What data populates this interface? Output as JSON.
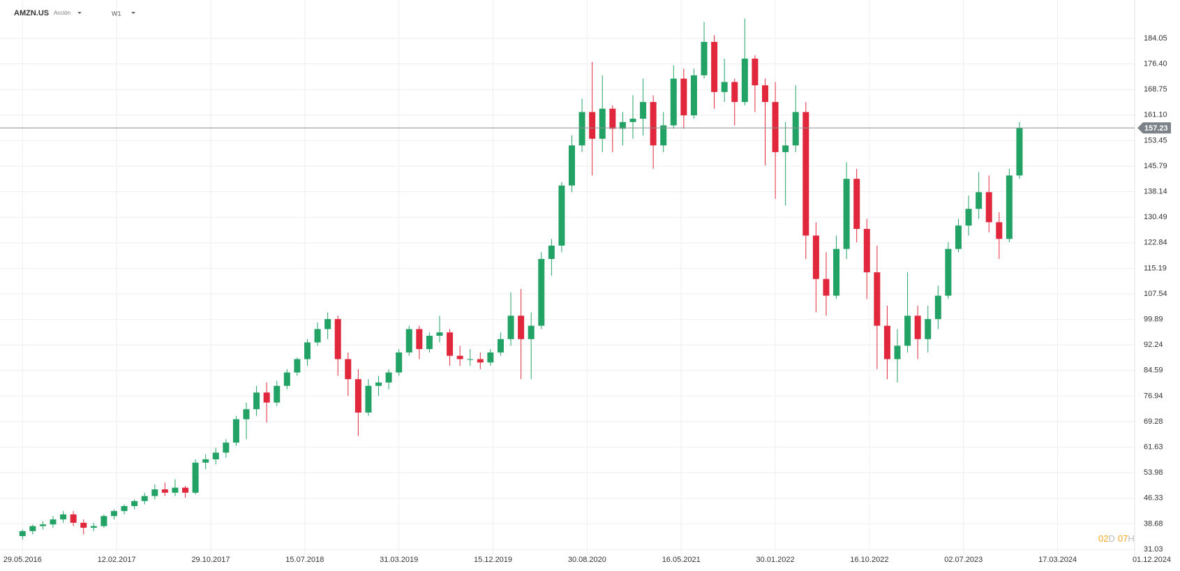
{
  "header": {
    "symbol": "AMZN.US",
    "kind": "Acción",
    "timeframe": "W1"
  },
  "countdown": [
    "02",
    "D",
    "07",
    "H"
  ],
  "chart_data": {
    "type": "candlestick",
    "up_color": "#22a365",
    "down_color": "#e0273b",
    "grid": true,
    "last_price": 157.23,
    "xlim": [
      "28.03.2016",
      "15.10.2024"
    ],
    "xticks": [
      "29.05.2016",
      "12.02.2017",
      "29.10.2017",
      "15.07.2018",
      "31.03.2019",
      "15.12.2019",
      "30.08.2020",
      "16.05.2021",
      "30.01.2022",
      "16.10.2022",
      "02.07.2023",
      "17.03.2024",
      "01.12.2024"
    ],
    "ylim": [
      29.36,
      195.55
    ],
    "yticks": [
      31.03,
      38.68,
      46.33,
      53.98,
      61.63,
      69.28,
      76.94,
      84.59,
      92.24,
      99.89,
      107.54,
      115.19,
      122.84,
      130.49,
      138.14,
      145.79,
      153.45,
      {
        "value": 161.1,
        "label": "161.10"
      },
      168.75,
      {
        "value": 176.4,
        "label": "176.40"
      },
      184.05
    ],
    "x": [
      "29.05.2016",
      "26.06.2016",
      "24.07.2016",
      "21.08.2016",
      "18.09.2016",
      "16.10.2016",
      "13.11.2016",
      "11.12.2016",
      "08.01.2017",
      "05.02.2017",
      "05.03.2017",
      "02.04.2017",
      "30.04.2017",
      "28.05.2017",
      "25.06.2017",
      "23.07.2017",
      "20.08.2017",
      "17.09.2017",
      "15.10.2017",
      "12.11.2017",
      "10.12.2017",
      "07.01.2018",
      "04.02.2018",
      "04.03.2018",
      "01.04.2018",
      "29.04.2018",
      "27.05.2018",
      "24.06.2018",
      "22.07.2018",
      "19.08.2018",
      "16.09.2018",
      "14.10.2018",
      "11.11.2018",
      "09.12.2018",
      "06.01.2019",
      "03.02.2019",
      "03.03.2019",
      "31.03.2019",
      "28.04.2019",
      "26.05.2019",
      "23.06.2019",
      "21.07.2019",
      "18.08.2019",
      "15.09.2019",
      "13.10.2019",
      "10.11.2019",
      "08.12.2019",
      "05.01.2020",
      "02.02.2020",
      "01.03.2020",
      "29.03.2020",
      "26.04.2020",
      "24.05.2020",
      "21.06.2020",
      "19.07.2020",
      "16.08.2020",
      "13.09.2020",
      "11.10.2020",
      "08.11.2020",
      "06.12.2020",
      "03.01.2021",
      "31.01.2021",
      "28.02.2021",
      "28.03.2021",
      "25.04.2021",
      "23.05.2021",
      "20.06.2021",
      "18.07.2021",
      "15.08.2021",
      "12.09.2021",
      "10.10.2021",
      "07.11.2021",
      "05.12.2021",
      "02.01.2022",
      "30.01.2022",
      "27.02.2022",
      "27.03.2022",
      "24.04.2022",
      "22.05.2022",
      "19.06.2022",
      "17.07.2022",
      "14.08.2022",
      "11.09.2022",
      "09.10.2022",
      "06.11.2022",
      "04.12.2022",
      "01.01.2023",
      "29.01.2023",
      "26.02.2023",
      "26.03.2023",
      "23.04.2023",
      "21.05.2023",
      "18.06.2023",
      "16.07.2023",
      "13.08.2023",
      "10.09.2023",
      "08.10.2023",
      "05.11.2023",
      "03.12.2023"
    ],
    "open": [
      35,
      36.5,
      38,
      38.5,
      40,
      41.5,
      39,
      37.5,
      38,
      41,
      42.5,
      44,
      45.5,
      47,
      49,
      48,
      49.5,
      48,
      57,
      58,
      60,
      63,
      70,
      73,
      78,
      75,
      80,
      84,
      88,
      93,
      97,
      100,
      88,
      82,
      72,
      80,
      81,
      84,
      90,
      97,
      91,
      95,
      96,
      89,
      88,
      88,
      87,
      90,
      94,
      101,
      94,
      98,
      118,
      122,
      140,
      152,
      162,
      154,
      163,
      157,
      159,
      160,
      165,
      152,
      158,
      172,
      161,
      173,
      183,
      168,
      171,
      165,
      178,
      170,
      165,
      150,
      152,
      162,
      125,
      112,
      107,
      121,
      142,
      127,
      114,
      98,
      88,
      92,
      101,
      94,
      100,
      107,
      121,
      128,
      133,
      138,
      129,
      124,
      143
    ],
    "high": [
      37,
      38.5,
      39.5,
      41,
      42.5,
      42.5,
      40,
      39,
      41.5,
      43,
      44.5,
      46,
      48,
      50.5,
      51,
      52,
      50,
      58,
      59.5,
      61.5,
      64,
      71,
      75,
      80,
      81,
      81.5,
      85,
      88.5,
      94,
      99,
      102,
      101,
      90,
      85,
      82,
      83,
      85,
      91,
      98,
      98,
      96,
      101,
      97,
      92,
      91,
      90,
      91,
      96,
      108,
      109,
      102,
      120,
      124,
      141,
      155,
      166,
      177,
      173,
      164,
      162,
      167,
      172,
      167,
      162,
      176,
      175,
      175,
      189,
      185,
      178,
      172,
      190,
      179,
      172,
      171,
      159,
      170,
      165,
      129,
      120,
      125,
      147,
      145,
      130,
      122,
      104,
      97,
      114,
      104,
      104,
      110,
      123,
      130,
      137,
      144,
      143,
      132,
      145,
      159
    ],
    "low": [
      34,
      35.5,
      37,
      37.5,
      39,
      38,
      35.5,
      36.5,
      37.5,
      40,
      41.5,
      43,
      44.5,
      46,
      47,
      47,
      46.5,
      47.5,
      55,
      56.5,
      58.5,
      62,
      64,
      71,
      69,
      74,
      79,
      83,
      86,
      92,
      94,
      83,
      77,
      65,
      71,
      77,
      79,
      83,
      89,
      88,
      90,
      93,
      86,
      86,
      86,
      85,
      86,
      89,
      92,
      82,
      82,
      97,
      113,
      120,
      138,
      150,
      143,
      150,
      150,
      152,
      154,
      155,
      145,
      150,
      157,
      157,
      160,
      172,
      163,
      165,
      158,
      164,
      162,
      146,
      136,
      134,
      150,
      118,
      102,
      101,
      106,
      118,
      123,
      106,
      85,
      82,
      81,
      90,
      88,
      90,
      97,
      106,
      120,
      125,
      130,
      126,
      118,
      123,
      142
    ],
    "close": [
      36.5,
      38,
      38.5,
      40,
      41.5,
      39,
      37.5,
      38,
      41,
      42.5,
      44,
      45.5,
      47,
      49,
      48,
      49.5,
      48,
      57,
      58,
      60,
      63,
      70,
      73,
      78,
      75,
      80,
      84,
      88,
      93,
      97,
      100,
      88,
      82,
      72,
      80,
      81,
      84,
      90,
      97,
      91,
      95,
      96,
      89,
      88,
      88,
      87,
      90,
      94,
      101,
      94,
      98,
      118,
      122,
      140,
      152,
      162,
      154,
      163,
      157,
      159,
      160,
      165,
      152,
      158,
      172,
      161,
      173,
      183,
      168,
      171,
      165,
      178,
      170,
      165,
      150,
      152,
      162,
      125,
      112,
      107,
      121,
      142,
      127,
      114,
      98,
      88,
      92,
      101,
      94,
      100,
      107,
      121,
      128,
      133,
      138,
      129,
      124,
      143,
      157.23
    ]
  }
}
